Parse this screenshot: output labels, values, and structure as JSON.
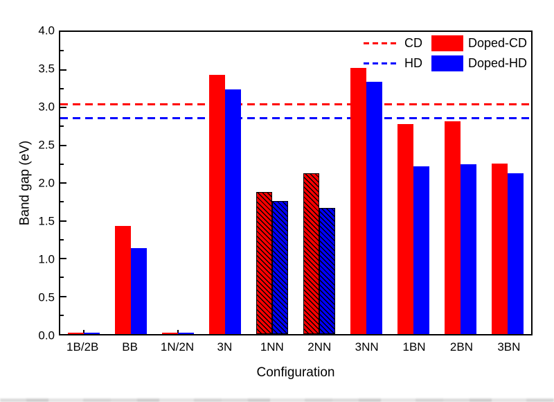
{
  "chart_data": {
    "type": "bar",
    "title": "",
    "xlabel": "Configuration",
    "ylabel": "Band gap (eV)",
    "ylim": [
      0,
      4
    ],
    "y_major_step": 0.5,
    "y_minor_step": 0.25,
    "y_tick_labels": [
      "0.0",
      "0.5",
      "1.0",
      "1.5",
      "2.0",
      "2.5",
      "3.0",
      "3.5",
      "4.0"
    ],
    "grid": false,
    "legend_position": "top-right-inside",
    "categories": [
      "1B/2B",
      "BB",
      "1N/2N",
      "3N",
      "1NN",
      "2NN",
      "3NN",
      "1BN",
      "2BN",
      "3BN"
    ],
    "hatched_category_indices": [
      4,
      5
    ],
    "series": [
      {
        "name": "Doped-CD",
        "color": "#ff0000",
        "values": [
          0.02,
          1.43,
          0.02,
          3.43,
          1.88,
          2.13,
          3.52,
          2.78,
          2.82,
          2.26
        ]
      },
      {
        "name": "Doped-HD",
        "color": "#0000ff",
        "values": [
          0.02,
          1.14,
          0.02,
          3.24,
          1.76,
          1.67,
          3.34,
          2.22,
          2.25,
          2.13
        ]
      }
    ],
    "reference_lines": [
      {
        "name": "CD",
        "value": 3.04,
        "color": "#ff0000",
        "style": "dashed"
      },
      {
        "name": "HD",
        "value": 2.86,
        "color": "#0000ff",
        "style": "dashed"
      }
    ]
  },
  "colors": {
    "axis": "#000000",
    "background": "#ffffff",
    "text": "#000000"
  }
}
